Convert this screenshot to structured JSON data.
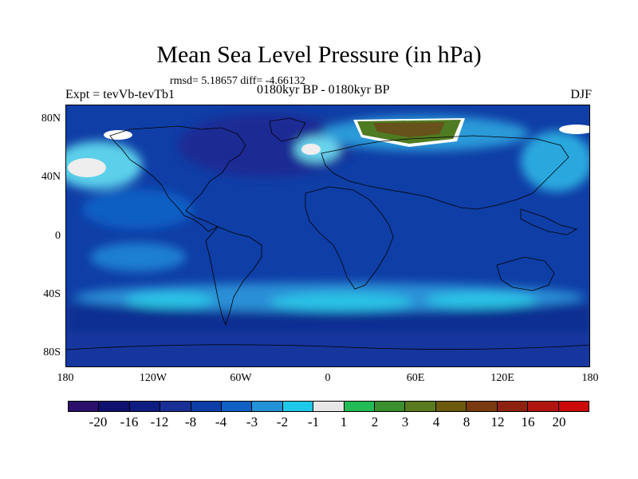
{
  "title": "Mean Sea Level Pressure (in hPa)",
  "stats": "rmsd= 5.18657 diff= -4.66132",
  "expt": "Expt = tevVb-tevTb1",
  "period": "0180kyr BP - 0180kyr BP",
  "season": "DJF",
  "lat_labels": [
    "80N",
    "40N",
    "0",
    "40S",
    "80S"
  ],
  "lon_labels": [
    "180",
    "120W",
    "60W",
    "0",
    "60E",
    "120E",
    "180"
  ],
  "colorbar": {
    "colors": [
      "#2b0f6b",
      "#101070",
      "#0f1c82",
      "#1a2f96",
      "#0d3ea8",
      "#0f5fc4",
      "#2391d6",
      "#1ec8e8",
      "#e6e6e6",
      "#22bb55",
      "#3b8f2f",
      "#5a7a1f",
      "#6b5a10",
      "#7a3a10",
      "#8e2210",
      "#b01510",
      "#cc0a0a"
    ],
    "labels": [
      "-20",
      "-16",
      "-12",
      "-8",
      "-4",
      "-3",
      "-2",
      "-1",
      "1",
      "2",
      "3",
      "4",
      "8",
      "12",
      "16",
      "20"
    ]
  }
}
